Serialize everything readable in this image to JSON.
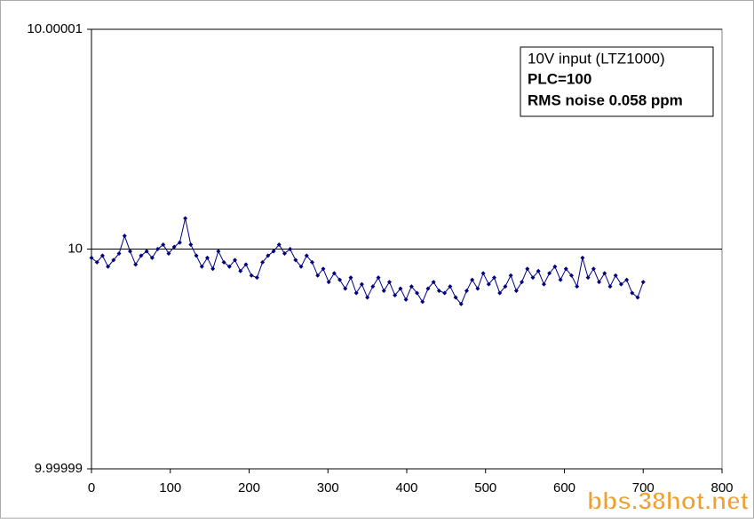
{
  "chart_data": {
    "type": "line",
    "x": [
      0,
      7,
      14,
      21,
      28,
      35,
      42,
      49,
      56,
      63,
      70,
      77,
      84,
      91,
      98,
      105,
      112,
      119,
      126,
      133,
      140,
      147,
      154,
      161,
      168,
      175,
      182,
      189,
      196,
      203,
      210,
      217,
      224,
      231,
      238,
      245,
      252,
      259,
      266,
      273,
      280,
      287,
      294,
      301,
      308,
      315,
      322,
      329,
      336,
      343,
      350,
      357,
      364,
      371,
      378,
      385,
      392,
      399,
      406,
      413,
      420,
      427,
      434,
      441,
      448,
      455,
      462,
      469,
      476,
      483,
      490,
      497,
      504,
      511,
      518,
      525,
      532,
      539,
      546,
      553,
      560,
      567,
      574,
      581,
      588,
      595,
      602,
      609,
      616,
      623,
      630,
      637,
      644,
      651,
      658,
      665,
      672,
      679,
      686,
      693,
      700
    ],
    "series": [
      {
        "color": "#000080",
        "values": [
          9.9999996,
          9.9999994,
          9.9999997,
          9.9999992,
          9.9999995,
          9.9999998,
          10.0000006,
          9.9999999,
          9.9999993,
          9.9999997,
          9.9999999,
          9.9999996,
          10,
          10.0000002,
          9.9999998,
          10.0000001,
          10.0000003,
          10.0000014,
          10.0000002,
          9.9999997,
          9.9999992,
          9.9999996,
          9.9999991,
          9.9999999,
          9.9999994,
          9.9999992,
          9.9999995,
          9.999999,
          9.9999993,
          9.9999988,
          9.9999987,
          9.9999994,
          9.9999997,
          9.9999999,
          10.0000002,
          9.9999998,
          10,
          9.9999995,
          9.9999992,
          9.9999997,
          9.9999994,
          9.9999988,
          9.9999991,
          9.9999985,
          9.9999989,
          9.9999986,
          9.9999982,
          9.9999987,
          9.999998,
          9.9999984,
          9.9999978,
          9.9999983,
          9.9999987,
          9.9999981,
          9.9999985,
          9.9999979,
          9.9999982,
          9.9999977,
          9.9999983,
          9.999998,
          9.9999976,
          9.9999982,
          9.9999985,
          9.9999981,
          9.999998,
          9.9999983,
          9.9999978,
          9.9999975,
          9.9999981,
          9.9999986,
          9.9999982,
          9.9999989,
          9.9999984,
          9.9999987,
          9.999998,
          9.9999983,
          9.9999988,
          9.9999981,
          9.9999985,
          9.9999991,
          9.9999987,
          9.999999,
          9.9999984,
          9.9999989,
          9.9999992,
          9.9999986,
          9.9999991,
          9.9999988,
          9.9999983,
          9.9999996,
          9.9999987,
          9.9999991,
          9.9999985,
          9.9999989,
          9.9999983,
          9.9999988,
          9.9999984,
          9.9999986,
          9.999998,
          9.9999978,
          9.9999985
        ]
      }
    ],
    "xlim": [
      0,
      800
    ],
    "xticks": [
      0,
      100,
      200,
      300,
      400,
      500,
      600,
      700,
      800
    ],
    "ylim": [
      9.99999,
      10.00001
    ],
    "yticks": [
      9.99999,
      10,
      10.00001
    ],
    "grid": true,
    "annotations": [
      "10V input (LTZ1000)",
      "PLC=100",
      "RMS noise 0.058 ppm"
    ],
    "watermark": "bbs.38hot.net"
  }
}
